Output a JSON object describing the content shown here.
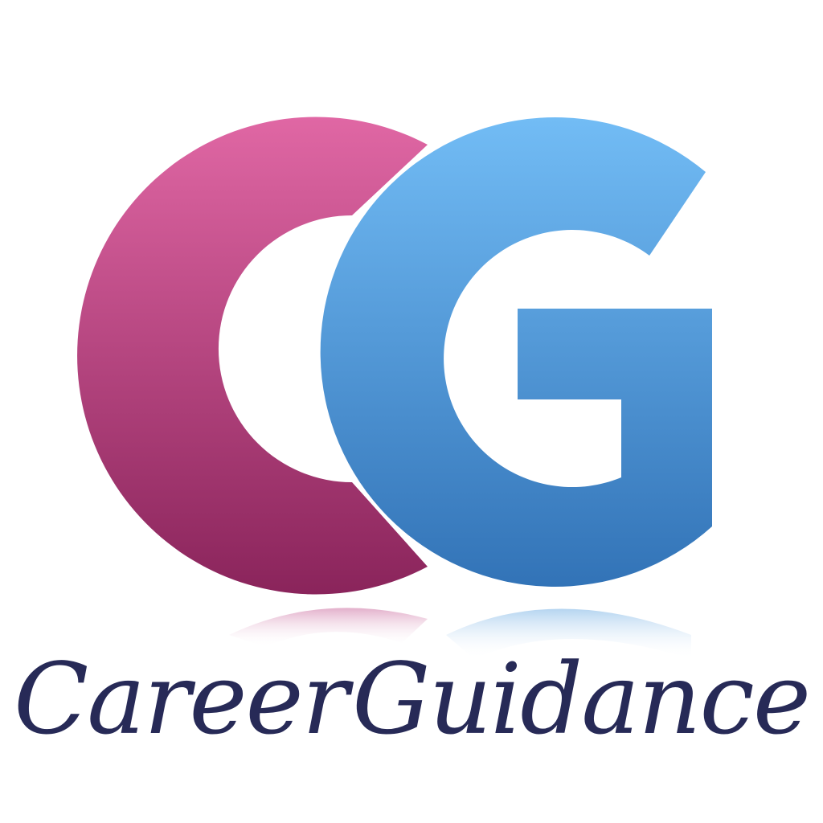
{
  "logo": {
    "monogram": [
      "C",
      "G"
    ],
    "wordmark": [
      "Career",
      "Guidance"
    ],
    "colors": {
      "c_top": "#e067a4",
      "c_bottom": "#8a245b",
      "g_top": "#72bcf5",
      "g_bottom": "#3273b7",
      "wordmark": "#272a57",
      "background": "#ffffff"
    }
  }
}
